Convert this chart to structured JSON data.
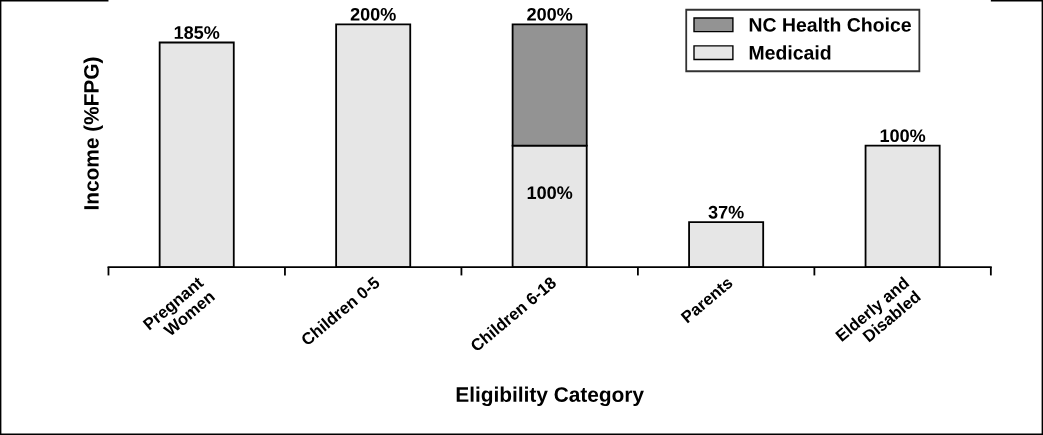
{
  "chart_data": {
    "type": "bar",
    "stacked": true,
    "xlabel": "Eligibility Category",
    "ylabel": "Income (%FPG)",
    "categories": [
      "Pregnant\nWomen",
      "Children 0-5",
      "Children 6-18",
      "Parents",
      "Elderly and\nDisabled"
    ],
    "series": [
      {
        "name": "Medicaid",
        "color": "#e6e6e6",
        "values": [
          185,
          200,
          100,
          37,
          100
        ],
        "value_labels": [
          "185%",
          "200%",
          "100%",
          "37%",
          "100%"
        ]
      },
      {
        "name": "NC Health Choice",
        "color": "#939393",
        "values": [
          null,
          null,
          100,
          null,
          null
        ]
      }
    ],
    "totals": [
      null,
      null,
      "200%",
      null,
      null
    ],
    "ylim": [
      0,
      220
    ],
    "tick_labels": "x",
    "legend": "top right",
    "grid": false
  }
}
